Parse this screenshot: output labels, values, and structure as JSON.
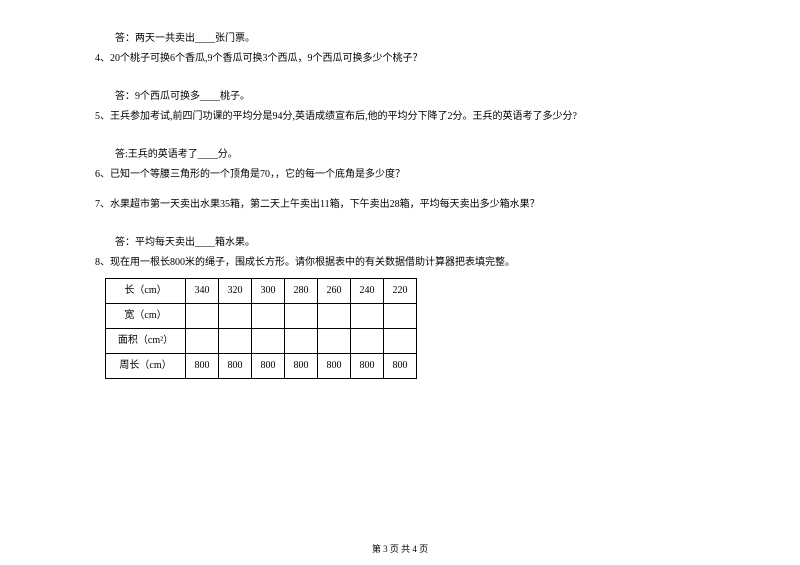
{
  "q3_answer": "答：两天一共卖出____张门票。",
  "q4": "4、20个桃子可换6个香瓜,9个香瓜可换3个西瓜，9个西瓜可换多少个桃子？",
  "q4_answer": "答：9个西瓜可换多____桃子。",
  "q5": "5、王兵参加考试,前四门功课的平均分是94分,英语成绩宣布后,他的平均分下降了2分。王兵的英语考了多少分?",
  "q5_answer": "答:王兵的英语考了____分。",
  "q6": "6、已知一个等腰三角形的一个顶角是70，，它的每一个底角是多少度？",
  "q7": "7、水果超市第一天卖出水果35箱，第二天上午卖出11箱，下午卖出28箱，平均每天卖出多少箱水果？",
  "q7_answer": "答：平均每天卖出____箱水果。",
  "q8": "8、现在用一根长800米的绳子，围成长方形。请你根据表中的有关数据借助计算器把表填完整。",
  "table": {
    "rows": [
      {
        "label": "长（cm）",
        "cells": [
          "340",
          "320",
          "300",
          "280",
          "260",
          "240",
          "220"
        ]
      },
      {
        "label": "宽（cm）",
        "cells": [
          "",
          "",
          "",
          "",
          "",
          "",
          ""
        ]
      },
      {
        "label": "面积（cm²）",
        "cells": [
          "",
          "",
          "",
          "",
          "",
          "",
          ""
        ]
      },
      {
        "label": "周长（cm）",
        "cells": [
          "800",
          "800",
          "800",
          "800",
          "800",
          "800",
          "800"
        ]
      }
    ]
  },
  "footer": "第 3 页 共 4 页"
}
